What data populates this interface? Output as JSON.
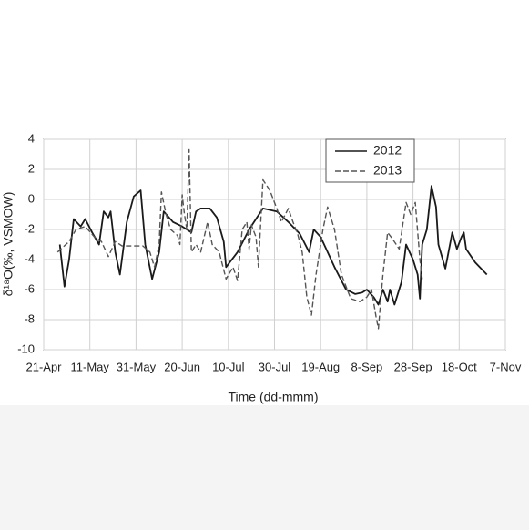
{
  "chart_data": {
    "type": "line",
    "xlabel": "Time (dd-mmm)",
    "ylabel": "δ¹⁸O(‰, VSMOW)",
    "xlim": [
      "21-Apr",
      "7-Nov"
    ],
    "xticks": [
      "21-Apr",
      "11-May",
      "31-May",
      "20-Jun",
      "10-Jul",
      "30-Jul",
      "19-Aug",
      "8-Sep",
      "28-Sep",
      "18-Oct",
      "7-Nov"
    ],
    "ylim": [
      -10,
      4
    ],
    "yticks": [
      -10,
      -8,
      -6,
      -4,
      -2,
      0,
      2,
      4
    ],
    "grid": true,
    "legend": "upper right",
    "series": [
      {
        "name": "2012",
        "color": "#1a1a1a",
        "linestyle": "solid",
        "x": [
          "28-Apr",
          "30-Apr",
          "2-May",
          "4-May",
          "7-May",
          "9-May",
          "12-May",
          "15-May",
          "17-May",
          "19-May",
          "20-May",
          "22-May",
          "24-May",
          "27-May",
          "30-May",
          "2-Jun",
          "4-Jun",
          "7-Jun",
          "10-Jun",
          "12-Jun",
          "16-Jun",
          "20-Jun",
          "24-Jun",
          "26-Jun",
          "28-Jun",
          "2-Jul",
          "5-Jul",
          "8-Jul",
          "9-Jul",
          "14-Jul",
          "19-Jul",
          "25-Jul",
          "31-Jul",
          "5-Aug",
          "10-Aug",
          "14-Aug",
          "16-Aug",
          "19-Aug",
          "25-Aug",
          "30-Aug",
          "3-Sep",
          "6-Sep",
          "8-Sep",
          "11-Sep",
          "13-Sep",
          "15-Sep",
          "17-Sep",
          "18-Sep",
          "20-Sep",
          "23-Sep",
          "25-Sep",
          "28-Sep",
          "30-Sep",
          "1-Oct",
          "2-Oct",
          "4-Oct",
          "6-Oct",
          "8-Oct",
          "9-Oct",
          "12-Oct",
          "15-Oct",
          "17-Oct",
          "19-Oct",
          "20-Oct",
          "21-Oct",
          "25-Oct",
          "30-Oct"
        ],
        "values": [
          -3,
          -5.8,
          -4,
          -1.3,
          -1.8,
          -1.3,
          -2.2,
          -3,
          -0.8,
          -1.2,
          -0.8,
          -3.5,
          -5,
          -1.5,
          0.2,
          0.6,
          -3,
          -5.3,
          -3.5,
          -0.8,
          -1.5,
          -1.8,
          -2.2,
          -0.8,
          -0.6,
          -0.6,
          -1.2,
          -2.8,
          -4.5,
          -3.5,
          -2,
          -0.6,
          -0.8,
          -1.5,
          -2.3,
          -3.5,
          -2,
          -2.5,
          -4.5,
          -6,
          -6.3,
          -6.2,
          -6,
          -6.5,
          -7,
          -6,
          -6.8,
          -6,
          -7,
          -5.5,
          -3,
          -4,
          -5,
          -6.6,
          -3,
          -2,
          0.9,
          -0.5,
          -3,
          -4.6,
          -2.2,
          -3.3,
          -2.5,
          -2.2,
          -3.3,
          -4.2,
          -5
        ]
      },
      {
        "name": "2013",
        "color": "#555555",
        "linestyle": "dashed",
        "x": [
          "27-Apr",
          "2-May",
          "5-May",
          "9-May",
          "13-May",
          "16-May",
          "19-May",
          "22-May",
          "25-May",
          "31-May",
          "3-Jun",
          "6-Jun",
          "8-Jun",
          "10-Jun",
          "11-Jun",
          "13-Jun",
          "15-Jun",
          "18-Jun",
          "19-Jun",
          "20-Jun",
          "21-Jun",
          "22-Jun",
          "23-Jun",
          "24-Jun",
          "26-Jun",
          "28-Jun",
          "1-Jul",
          "3-Jul",
          "6-Jul",
          "9-Jul",
          "12-Jul",
          "14-Jul",
          "16-Jul",
          "18-Jul",
          "19-Jul",
          "20-Jul",
          "22-Jul",
          "23-Jul",
          "25-Jul",
          "28-Jul",
          "31-Jul",
          "2-Aug",
          "5-Aug",
          "7-Aug",
          "9-Aug",
          "11-Aug",
          "13-Aug",
          "15-Aug",
          "17-Aug",
          "20-Aug",
          "22-Aug",
          "25-Aug",
          "28-Aug",
          "1-Sep",
          "5-Sep",
          "8-Sep",
          "10-Sep",
          "12-Sep",
          "13-Sep",
          "15-Sep",
          "17-Sep",
          "19-Sep",
          "22-Sep",
          "25-Sep",
          "27-Sep",
          "29-Sep",
          "1-Oct",
          "2-Oct"
        ],
        "values": [
          -3.5,
          -2.8,
          -2,
          -1.8,
          -2.5,
          -2.8,
          -3.8,
          -2.8,
          -3.1,
          -3.1,
          -3.1,
          -3.5,
          -4.5,
          -3,
          0.5,
          -1,
          -2,
          -2.4,
          -3,
          0.3,
          -1,
          -2,
          3.3,
          -3.5,
          -3,
          -3.5,
          -1.5,
          -3,
          -3.5,
          -5.3,
          -4.5,
          -5.4,
          -2,
          -1.5,
          -3.3,
          -1.7,
          -2.5,
          -4.5,
          1.3,
          0.6,
          -0.6,
          -1.5,
          -0.6,
          -1.5,
          -2.3,
          -3.5,
          -6.5,
          -7.7,
          -5,
          -2,
          -0.5,
          -2,
          -5,
          -6.6,
          -6.8,
          -6.5,
          -6,
          -7.8,
          -8.6,
          -5,
          -2.2,
          -2.6,
          -3.3,
          -0.2,
          -1,
          -0.2,
          -4,
          -5.3
        ]
      }
    ]
  }
}
